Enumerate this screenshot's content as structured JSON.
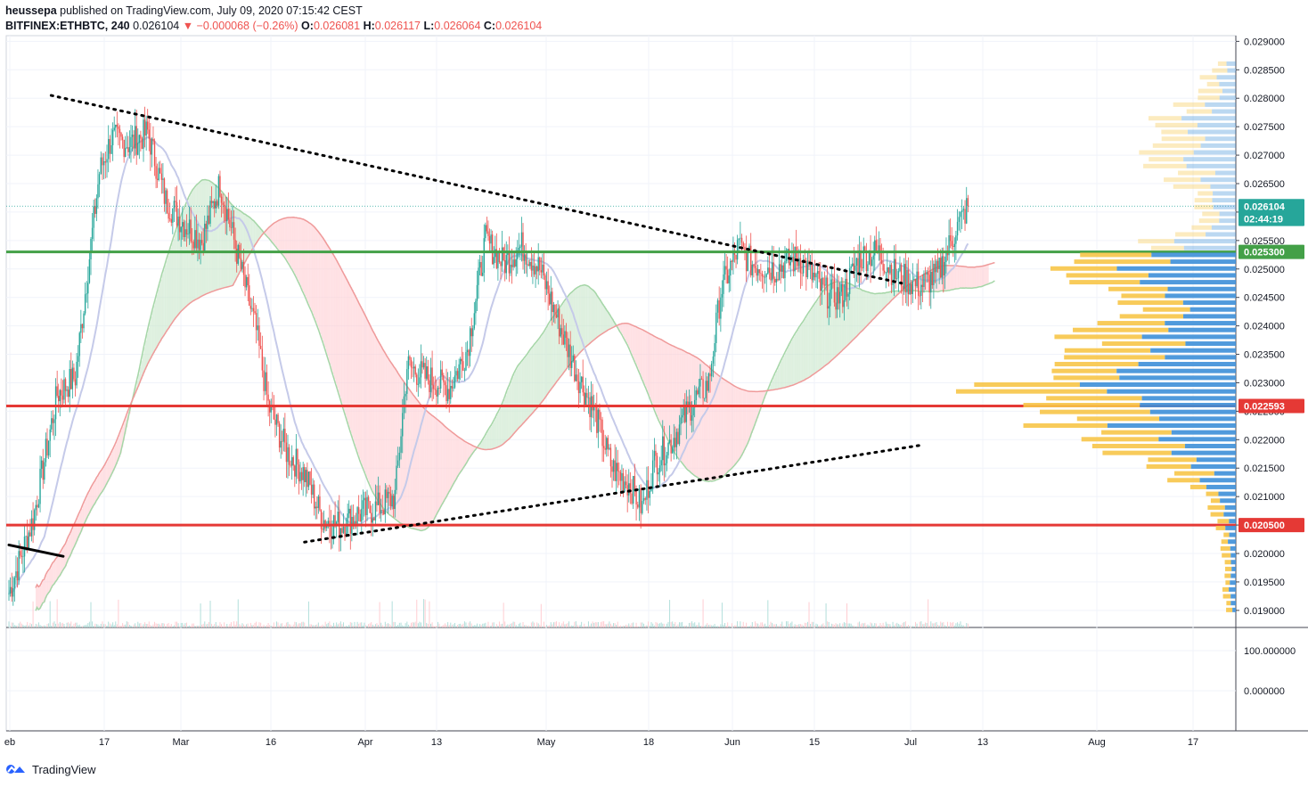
{
  "header": {
    "publisher": "heussepa",
    "published_text": "published on TradingView.com, July 09, 2020 07:15:42 CEST",
    "symbol": "BITFINEX:ETHBTC, 240",
    "last": "0.026104",
    "arrow": "▼",
    "change": "−0.000068 (−0.26%)",
    "o_label": "O:",
    "o_value": "0.026081",
    "h_label": "H:",
    "h_value": "0.026117",
    "l_label": "L:",
    "l_value": "0.026064",
    "c_label": "C:",
    "c_value": "0.026104"
  },
  "footer": {
    "brand": "TradingView"
  },
  "colors": {
    "up": "#26a69a",
    "down": "#ef5350",
    "support": "#e53935",
    "resistance_green": "#43a047",
    "kumo_bull": "#c8e6c9",
    "kumo_bear": "#ffcdd2",
    "vp_yellow": "#f7c548",
    "vp_blue": "#3d8fd8"
  },
  "chart_data": {
    "type": "candlestick",
    "price_axis_ticks": [
      "0.029000",
      "0.028500",
      "0.028000",
      "0.027500",
      "0.027000",
      "0.026500",
      "0.026000",
      "0.025500",
      "0.025000",
      "0.024500",
      "0.024000",
      "0.023500",
      "0.023000",
      "0.022500",
      "0.022000",
      "0.021500",
      "0.021000",
      "0.020500",
      "0.020000",
      "0.019500",
      "0.019000"
    ],
    "indicator_axis_ticks": [
      "100.000000",
      "0.000000"
    ],
    "x_axis_labels": [
      "eb",
      "17",
      "Mar",
      "16",
      "Apr",
      "13",
      "May",
      "18",
      "Jun",
      "15",
      "Jul",
      "13",
      "Aug",
      "17"
    ],
    "y_range": [
      0.0187,
      0.0291
    ],
    "price_badges": [
      {
        "label": "0.026104",
        "value": 0.026104,
        "color": "#26a69a"
      },
      {
        "label": "02:44:19",
        "value": 0.02588,
        "color": "#26a69a"
      },
      {
        "label": "0.025300",
        "value": 0.0253,
        "color": "#43a047"
      },
      {
        "label": "0.022593",
        "value": 0.022593,
        "color": "#e53935"
      },
      {
        "label": "0.020500",
        "value": 0.0205,
        "color": "#e53935"
      }
    ],
    "horizontal_levels": [
      {
        "value": 0.0253,
        "color": "#43a047"
      },
      {
        "value": 0.022593,
        "color": "#e53935"
      },
      {
        "value": 0.0205,
        "color": "#e53935"
      }
    ],
    "close_path": [
      [
        "Feb",
        0.0193
      ],
      [
        "Feb 5",
        0.0206
      ],
      [
        "Feb 9",
        0.0228
      ],
      [
        "Feb 12",
        0.0231
      ],
      [
        "Feb 16",
        0.0267
      ],
      [
        "Feb 18",
        0.0273
      ],
      [
        "Feb 21",
        0.0272
      ],
      [
        "Feb 24",
        0.0274
      ],
      [
        "Feb 27",
        0.0262
      ],
      [
        "Mar",
        0.0258
      ],
      [
        "Mar 4",
        0.0255
      ],
      [
        "Mar 7",
        0.0265
      ],
      [
        "Mar 10",
        0.0252
      ],
      [
        "Mar 13",
        0.0239
      ],
      [
        "Mar 15",
        0.0226
      ],
      [
        "Mar 18",
        0.0218
      ],
      [
        "Mar 21",
        0.0214
      ],
      [
        "Mar 24",
        0.0206
      ],
      [
        "Mar 27",
        0.0205
      ],
      [
        "Mar 30",
        0.0207
      ],
      [
        "Apr 2",
        0.0208
      ],
      [
        "Apr 5",
        0.021
      ],
      [
        "Apr 7",
        0.0233
      ],
      [
        "Apr 10",
        0.0231
      ],
      [
        "Apr 14",
        0.0229
      ],
      [
        "Apr 17",
        0.0236
      ],
      [
        "Apr 20",
        0.0255
      ],
      [
        "Apr 23",
        0.0251
      ],
      [
        "Apr 26",
        0.0254
      ],
      [
        "Apr 29",
        0.025
      ],
      [
        "May 2",
        0.0241
      ],
      [
        "May 5",
        0.0232
      ],
      [
        "May 8",
        0.0225
      ],
      [
        "May 11",
        0.0215
      ],
      [
        "May 14",
        0.0212
      ],
      [
        "May 16",
        0.0208
      ],
      [
        "May 18",
        0.0216
      ],
      [
        "May 21",
        0.022
      ],
      [
        "May 24",
        0.0226
      ],
      [
        "May 27",
        0.023
      ],
      [
        "May 29",
        0.0246
      ],
      [
        "Jun",
        0.0254
      ],
      [
        "Jun 3",
        0.0251
      ],
      [
        "Jun 7",
        0.025
      ],
      [
        "Jun 11",
        0.0252
      ],
      [
        "Jun 15",
        0.0246
      ],
      [
        "Jun 18",
        0.0245
      ],
      [
        "Jun 21",
        0.0252
      ],
      [
        "Jun 24",
        0.0253
      ],
      [
        "Jun 27",
        0.0249
      ],
      [
        "Jul",
        0.0247
      ],
      [
        "Jul 4",
        0.0249
      ],
      [
        "Jul 7",
        0.0257
      ],
      [
        "Jul 9",
        0.0261
      ]
    ],
    "trendlines": [
      {
        "style": "dotted",
        "from": [
          "Feb 8",
          0.02805
        ],
        "to": [
          "Jun 28",
          0.02475
        ]
      },
      {
        "style": "dotted",
        "from": [
          "Mar 21",
          0.0202
        ],
        "to": [
          "Jul 1",
          0.0219
        ]
      },
      {
        "style": "solid",
        "from": [
          "Feb",
          0.02015
        ],
        "to": [
          "Feb 10",
          0.01995
        ]
      }
    ],
    "volume_profile": "horizontal volume-by-price histogram on right edge, yellow (up volume) and blue (down volume), peak around 0.0229"
  }
}
